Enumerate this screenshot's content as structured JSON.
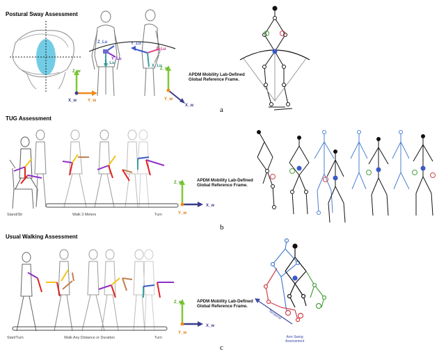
{
  "panels": [
    {
      "title": "Postural Sway Assessment",
      "letter": "a",
      "frame_note": [
        "APDM Mobility Lab-Defined",
        "Global Reference Frame."
      ],
      "sensor_axes": [
        "Z_Lu",
        "Y_Lu",
        "X_Lu",
        "Y_Lu",
        "Z_Lu",
        "X_Lu"
      ],
      "global_axes": {
        "z": "Z_w",
        "y": "Y_w",
        "x": "X_w"
      },
      "global_axes_2": {
        "z": "Z_w",
        "y": "Y_w",
        "x": "X_w"
      }
    },
    {
      "title": "TUG Assessment",
      "letter": "b",
      "frame_note": [
        "APDM Mobility Lab-Defined",
        "Global Reference Frame."
      ],
      "phases": [
        "Stand/Sit",
        "Walk 3 Meters",
        "Turn"
      ],
      "global_axes": {
        "z": "Z_w",
        "y": "Y_w",
        "x": "X_w"
      }
    },
    {
      "title": "Usual Walking Assessment",
      "letter": "c",
      "frame_note": [
        "APDM Mobility Lab-Defined",
        "Global Reference Frame."
      ],
      "phases": [
        "Start/Turn",
        "Walk Any Distance or Duration",
        "Turn"
      ],
      "global_axes": {
        "z": "Z_w",
        "y": "Y_w",
        "x": "X_w"
      },
      "annotations": [
        "Temporal",
        "Arm Swing",
        "Assessment"
      ]
    }
  ],
  "colors": {
    "z_axis": "#7dc832",
    "y_axis": "#f08a1c",
    "x_axis": "#3a3d8c",
    "sensor_red": "#e02020",
    "sensor_purple": "#8e2fc8",
    "sensor_yellow": "#f2c21a",
    "skeleton_black": "#111111",
    "skeleton_blue": "#4a7fd0",
    "skeleton_red": "#d0404a",
    "skeleton_green": "#4aa040"
  }
}
